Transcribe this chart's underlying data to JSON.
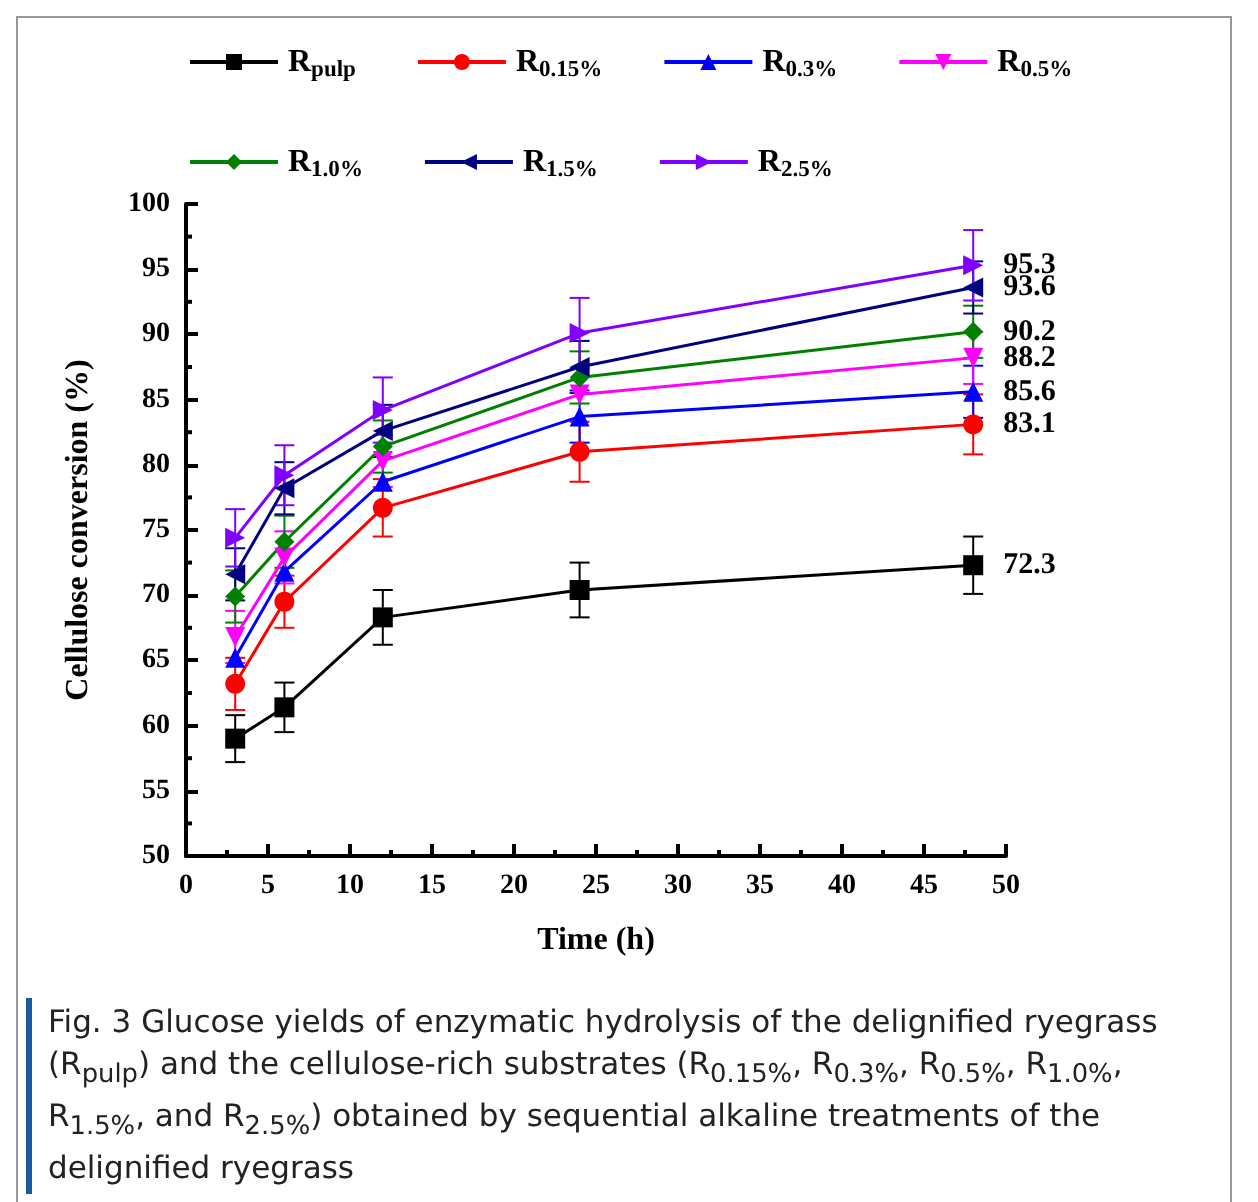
{
  "chart_data": {
    "type": "line",
    "xlabel": "Time (h)",
    "ylabel": "Cellulose conversion (%)",
    "x": [
      3,
      6,
      12,
      24,
      48
    ],
    "xlim": [
      0,
      50
    ],
    "xticks": [
      0,
      5,
      10,
      15,
      20,
      25,
      30,
      35,
      40,
      45,
      50
    ],
    "ylim": [
      50,
      100
    ],
    "yticks": [
      50,
      55,
      60,
      65,
      70,
      75,
      80,
      85,
      90,
      95,
      100
    ],
    "grid": false,
    "legend": "top",
    "line_style": "solid",
    "series": [
      {
        "name": "R$_{pulp}$",
        "color": "#000000",
        "marker": "square",
        "values": [
          59.0,
          61.4,
          68.3,
          70.4,
          72.3
        ],
        "errors": [
          1.8,
          1.9,
          2.1,
          2.1,
          2.2
        ],
        "value_labels": [
          null,
          null,
          null,
          null,
          "72.3"
        ]
      },
      {
        "name": "R$_{0.15%}$",
        "color": "#ff0000",
        "marker": "circle",
        "values": [
          63.2,
          69.5,
          76.7,
          81.0,
          83.1
        ],
        "errors": [
          2.0,
          2.0,
          2.2,
          2.3,
          2.3
        ],
        "value_labels": [
          null,
          null,
          null,
          null,
          "83.1"
        ]
      },
      {
        "name": "R$_{0.3%}$",
        "color": "#0000ff",
        "marker": "triangle",
        "values": [
          65.2,
          71.8,
          78.7,
          83.7,
          85.6
        ],
        "errors": [
          null,
          null,
          null,
          2.0,
          2.0
        ],
        "value_labels": [
          null,
          null,
          null,
          null,
          "85.6"
        ]
      },
      {
        "name": "R$_{0.5%}$",
        "color": "#ff00ff",
        "marker": "triangle",
        "values": [
          66.8,
          72.9,
          80.3,
          85.4,
          88.2
        ],
        "errors": [
          2.0,
          2.0,
          2.0,
          null,
          2.0
        ],
        "value_labels": [
          null,
          null,
          null,
          null,
          "88.2"
        ]
      },
      {
        "name": "R$_{1.0%}$",
        "color": "#008000",
        "marker": "diamond",
        "values": [
          69.9,
          74.1,
          81.4,
          86.7,
          90.2
        ],
        "errors": [
          2.0,
          2.0,
          2.0,
          2.0,
          2.0
        ],
        "value_labels": [
          null,
          null,
          null,
          null,
          "90.2"
        ]
      },
      {
        "name": "R$_{1.5%}$",
        "color": "#000080",
        "marker": "triangle",
        "values": [
          71.6,
          78.2,
          82.6,
          87.5,
          93.6
        ],
        "errors": [
          2.0,
          2.0,
          2.0,
          2.0,
          2.0
        ],
        "value_labels": [
          null,
          null,
          null,
          null,
          "93.6"
        ]
      },
      {
        "name": "R$_{2.5%}$",
        "color": "#8000ff",
        "marker": "triangle",
        "values": [
          74.4,
          79.2,
          84.2,
          90.1,
          95.3
        ],
        "errors": [
          2.2,
          2.3,
          2.5,
          2.7,
          2.7
        ],
        "value_labels": [
          null,
          null,
          null,
          null,
          "95.3"
        ]
      }
    ],
    "annotations": [
      "Fig. 3 Glucose yields of enzymatic hydrolysis of the delignified ryegrass (R$_{pulp}$) and the cellulose-rich substrates (R$_{0.15%}$, R$_{0.3%}$, R$_{0.5%}$, R$_{1.0%}$, R$_{1.5%}$, and R$_{2.5%}$) obtained by sequential alkaline treatments of the delignified ryegrass"
    ]
  }
}
